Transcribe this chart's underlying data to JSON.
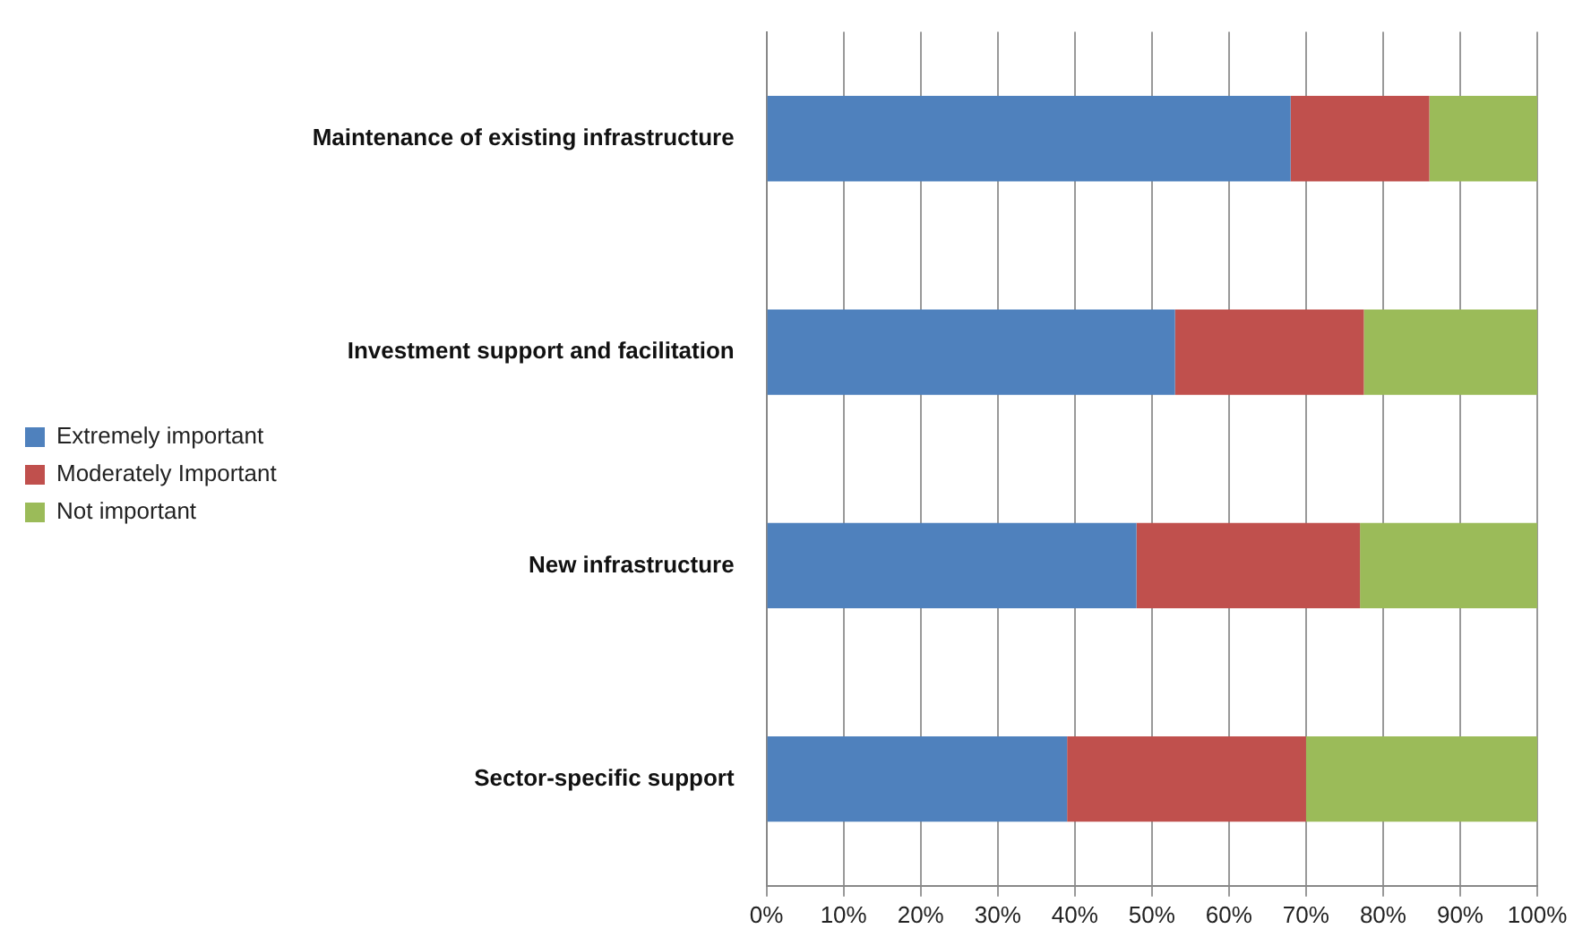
{
  "chart_data": {
    "type": "bar",
    "orientation": "horizontal",
    "stacked": true,
    "categories": [
      "Maintenance of existing infrastructure",
      "Investment support and facilitation",
      "New infrastructure",
      "Sector-specific support"
    ],
    "series": [
      {
        "name": "Extremely important",
        "color": "#4f81bd",
        "values": [
          68,
          53,
          48,
          39
        ]
      },
      {
        "name": "Moderately Important",
        "color": "#c0504d",
        "values": [
          18,
          24.5,
          29,
          31
        ]
      },
      {
        "name": "Not important",
        "color": "#9bbb59",
        "values": [
          14,
          22.5,
          23,
          30
        ]
      }
    ],
    "xlim": [
      0,
      100
    ],
    "xticks": [
      {
        "value": 0,
        "label": "0%"
      },
      {
        "value": 10,
        "label": "10%"
      },
      {
        "value": 20,
        "label": "20%"
      },
      {
        "value": 30,
        "label": "30%"
      },
      {
        "value": 40,
        "label": "40%"
      },
      {
        "value": 50,
        "label": "50%"
      },
      {
        "value": 60,
        "label": "60%"
      },
      {
        "value": 70,
        "label": "70%"
      },
      {
        "value": 80,
        "label": "80%"
      },
      {
        "value": 90,
        "label": "90%"
      },
      {
        "value": 100,
        "label": "100%"
      }
    ],
    "grid": "x",
    "legend": "left"
  }
}
